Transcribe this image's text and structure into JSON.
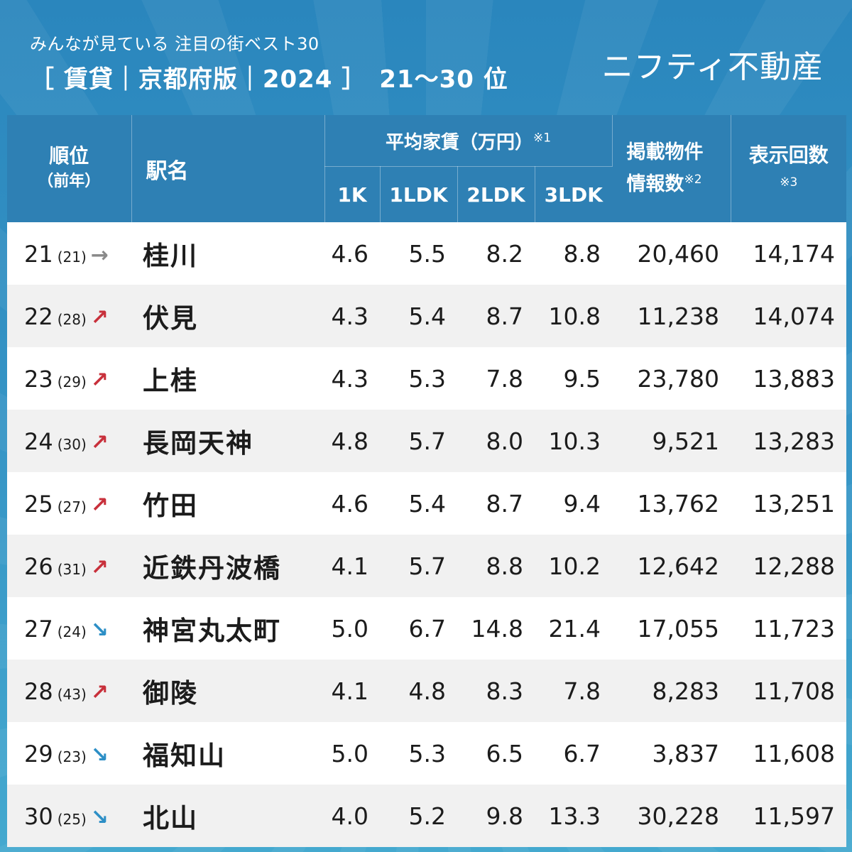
{
  "header": {
    "subtitle": "みんなが見ている 注目の街ベスト30",
    "title": "［ 賃貸｜京都府版｜2024 ］　21〜30 位",
    "logo": "ニフティ不動産"
  },
  "columns": {
    "rank": "順位",
    "rank_prev": "（前年）",
    "station": "駅名",
    "rent": "平均家賃（万円）",
    "rent_note": "※1",
    "k1": "1K",
    "ldk1": "1LDK",
    "ldk2": "2LDK",
    "ldk3": "3LDK",
    "listings_line1": "掲載物件",
    "listings_line2": "情報数",
    "listings_note": "※2",
    "views": "表示回数",
    "views_note": "※3"
  },
  "arrow_glyphs": {
    "up": "↗",
    "down": "↘",
    "same": "→"
  },
  "colors": {
    "up": "#c8303b",
    "down": "#2d8fc6",
    "same": "#8a8a8a",
    "header": "#2e80b4"
  },
  "rows": [
    {
      "rank": "21",
      "prev": "(21)",
      "trend": "same",
      "station": "桂川",
      "k1": "4.6",
      "ldk1": "5.5",
      "ldk2": "8.2",
      "ldk3": "8.8",
      "listings": "20,460",
      "views": "14,174"
    },
    {
      "rank": "22",
      "prev": "(28)",
      "trend": "up",
      "station": "伏見",
      "k1": "4.3",
      "ldk1": "5.4",
      "ldk2": "8.7",
      "ldk3": "10.8",
      "listings": "11,238",
      "views": "14,074"
    },
    {
      "rank": "23",
      "prev": "(29)",
      "trend": "up",
      "station": "上桂",
      "k1": "4.3",
      "ldk1": "5.3",
      "ldk2": "7.8",
      "ldk3": "9.5",
      "listings": "23,780",
      "views": "13,883"
    },
    {
      "rank": "24",
      "prev": "(30)",
      "trend": "up",
      "station": "長岡天神",
      "k1": "4.8",
      "ldk1": "5.7",
      "ldk2": "8.0",
      "ldk3": "10.3",
      "listings": "9,521",
      "views": "13,283"
    },
    {
      "rank": "25",
      "prev": "(27)",
      "trend": "up",
      "station": "竹田",
      "k1": "4.6",
      "ldk1": "5.4",
      "ldk2": "8.7",
      "ldk3": "9.4",
      "listings": "13,762",
      "views": "13,251"
    },
    {
      "rank": "26",
      "prev": "(31)",
      "trend": "up",
      "station": "近鉄丹波橋",
      "k1": "4.1",
      "ldk1": "5.7",
      "ldk2": "8.8",
      "ldk3": "10.2",
      "listings": "12,642",
      "views": "12,288"
    },
    {
      "rank": "27",
      "prev": "(24)",
      "trend": "down",
      "station": "神宮丸太町",
      "k1": "5.0",
      "ldk1": "6.7",
      "ldk2": "14.8",
      "ldk3": "21.4",
      "listings": "17,055",
      "views": "11,723"
    },
    {
      "rank": "28",
      "prev": "(43)",
      "trend": "up",
      "station": "御陵",
      "k1": "4.1",
      "ldk1": "4.8",
      "ldk2": "8.3",
      "ldk3": "7.8",
      "listings": "8,283",
      "views": "11,708"
    },
    {
      "rank": "29",
      "prev": "(23)",
      "trend": "down",
      "station": "福知山",
      "k1": "5.0",
      "ldk1": "5.3",
      "ldk2": "6.5",
      "ldk3": "6.7",
      "listings": "3,837",
      "views": "11,608"
    },
    {
      "rank": "30",
      "prev": "(25)",
      "trend": "down",
      "station": "北山",
      "k1": "4.0",
      "ldk1": "5.2",
      "ldk2": "9.8",
      "ldk3": "13.3",
      "listings": "30,228",
      "views": "11,597"
    }
  ]
}
